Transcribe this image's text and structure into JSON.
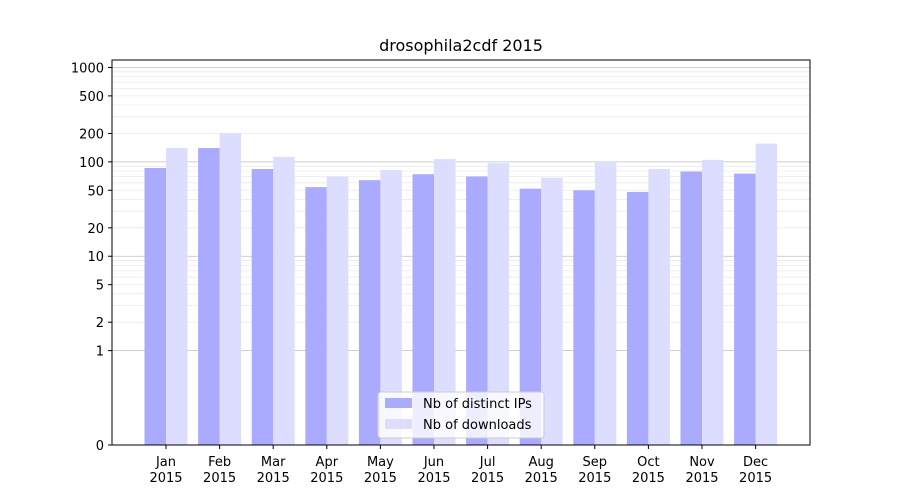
{
  "chart_data": {
    "type": "bar",
    "title": "drosophila2cdf 2015",
    "xlabel": "",
    "ylabel": "",
    "y_scale": "symlog",
    "ylim": [
      0,
      1200
    ],
    "y_ticks": [
      0,
      1,
      2,
      5,
      10,
      20,
      50,
      100,
      200,
      500,
      1000
    ],
    "y_tick_labels": [
      "0",
      "1",
      "2",
      "5",
      "10",
      "20",
      "50",
      "100",
      "200",
      "500",
      "1000"
    ],
    "grid": true,
    "legend_position": "bottom-center",
    "categories": [
      [
        "Jan",
        "2015"
      ],
      [
        "Feb",
        "2015"
      ],
      [
        "Mar",
        "2015"
      ],
      [
        "Apr",
        "2015"
      ],
      [
        "May",
        "2015"
      ],
      [
        "Jun",
        "2015"
      ],
      [
        "Jul",
        "2015"
      ],
      [
        "Aug",
        "2015"
      ],
      [
        "Sep",
        "2015"
      ],
      [
        "Oct",
        "2015"
      ],
      [
        "Nov",
        "2015"
      ],
      [
        "Dec",
        "2015"
      ]
    ],
    "series": [
      {
        "name": "Nb of distinct IPs",
        "color": "#aaaaff",
        "values": [
          86,
          140,
          84,
          54,
          64,
          74,
          70,
          52,
          50,
          48,
          79,
          75
        ]
      },
      {
        "name": "Nb of downloads",
        "color": "#ddddff",
        "values": [
          140,
          202,
          113,
          70,
          82,
          107,
          97,
          68,
          100,
          84,
          105,
          156
        ]
      }
    ]
  }
}
